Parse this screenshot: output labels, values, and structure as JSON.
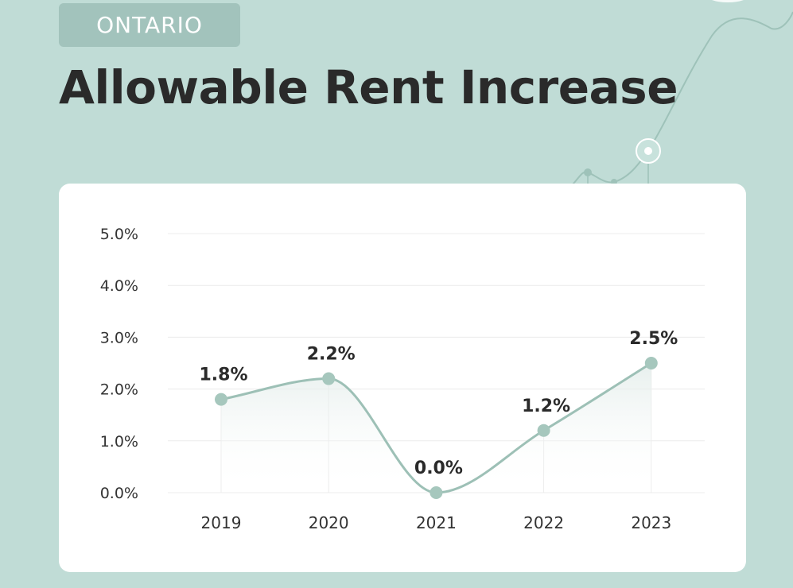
{
  "header": {
    "badge": "ONTARIO",
    "title": "Allowable Rent Increase"
  },
  "colors": {
    "background": "#c0dcd6",
    "badge": "#a2c3bc",
    "line": "#9dc0b6",
    "marker": "#a6c7bd",
    "title": "#2a2a2a"
  },
  "chart_data": {
    "type": "line",
    "categories": [
      "2019",
      "2020",
      "2021",
      "2022",
      "2023"
    ],
    "series": [
      {
        "values": [
          1.8,
          2.2,
          0.0,
          1.2,
          2.5
        ],
        "data_labels": [
          "1.8%",
          "2.2%",
          "0.0%",
          "1.2%",
          "2.5%"
        ]
      }
    ],
    "yticks": [
      "0.0%",
      "1.0%",
      "2.0%",
      "3.0%",
      "4.0%",
      "5.0%"
    ],
    "ylim": [
      0,
      5
    ],
    "smooth": true,
    "area_fill": true,
    "grid": "horizontal",
    "legend": "none"
  }
}
